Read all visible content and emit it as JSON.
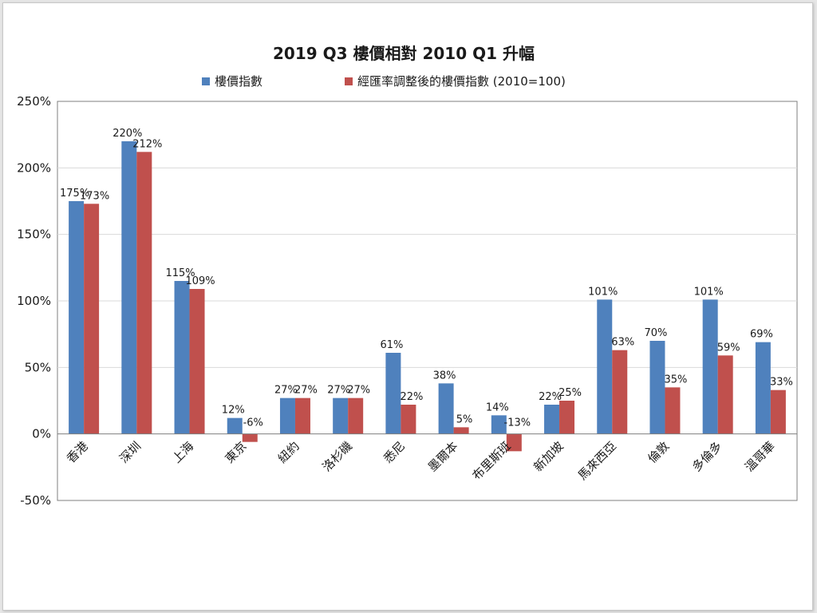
{
  "colors": {
    "series1": "#4f81bd",
    "series2": "#c0504d",
    "grid": "#d9d9d9",
    "axis": "#7f7f7f",
    "text": "#1a1a1a"
  },
  "chart_data": {
    "type": "bar",
    "title": "2019 Q3 樓價相對 2010 Q1  升幅",
    "xlabel": "",
    "ylabel": "",
    "categories": [
      "香港",
      "深圳",
      "上海",
      "東京",
      "紐約",
      "洛杉磯",
      "悉尼",
      "墨爾本",
      "布里斯班",
      "新加坡",
      "馬來西亞",
      "倫敦",
      "多倫多",
      "溫哥華"
    ],
    "series": [
      {
        "name": "樓價指數",
        "color": "#4f81bd",
        "values": [
          175,
          220,
          115,
          12,
          27,
          27,
          61,
          38,
          14,
          22,
          101,
          70,
          101,
          69
        ]
      },
      {
        "name": "經匯率調整後的樓價指數 (2010=100)",
        "color": "#c0504d",
        "values": [
          173,
          212,
          109,
          -6,
          27,
          27,
          22,
          5,
          -13,
          25,
          63,
          35,
          59,
          33
        ]
      }
    ],
    "unit": "%",
    "ylim": [
      -50,
      250
    ],
    "yticks": [
      -50,
      0,
      50,
      100,
      150,
      200,
      250
    ],
    "ytick_labels": [
      "-50%",
      "0%",
      "50%",
      "100%",
      "150%",
      "200%",
      "250%"
    ],
    "grid": true,
    "legend": "top"
  }
}
